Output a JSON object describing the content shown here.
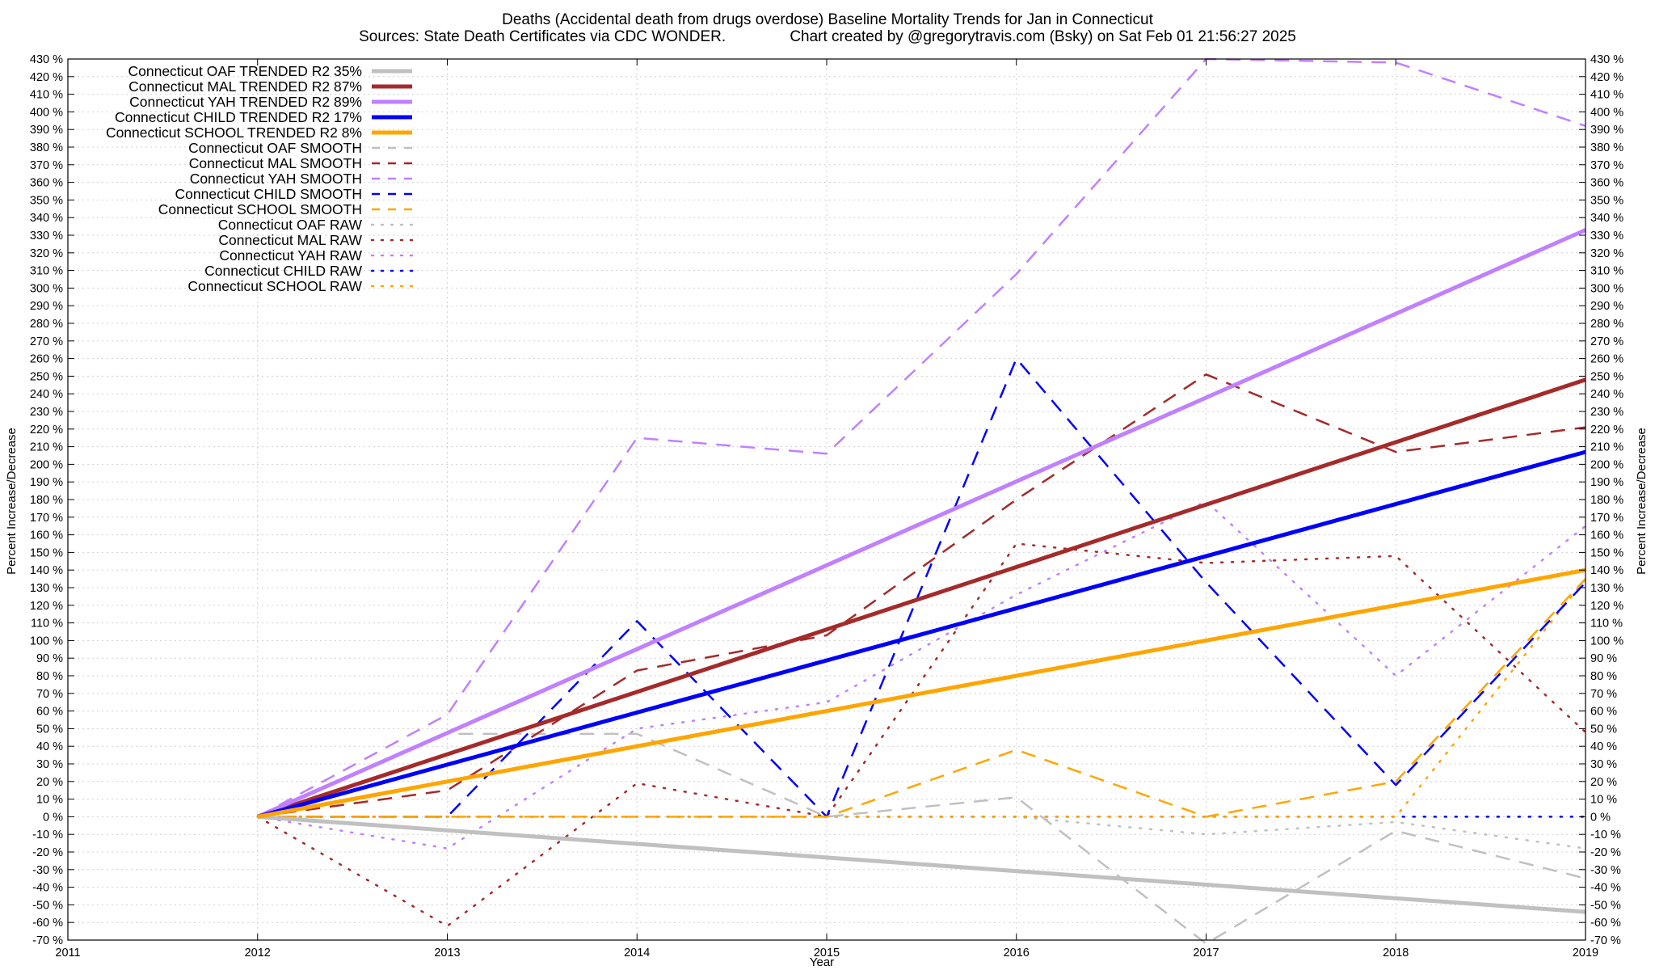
{
  "chart_data": {
    "type": "line",
    "title": "Deaths (Accidental death from drugs overdose)  Baseline Mortality Trends for Jan in Connecticut",
    "subtitle": "Sources: State Death Certificates via CDC WONDER.               Chart created by @gregorytravis.com (Bsky) on Sat Feb 01 21:56:27 2025",
    "xlabel": "Year",
    "ylabel": "Percent Increase/Decrease",
    "ylabel_right": "Percent Increase/Decrease",
    "xlim": [
      2011,
      2019
    ],
    "ylim": [
      -70,
      430
    ],
    "x_ticks": [
      2011,
      2012,
      2013,
      2014,
      2015,
      2016,
      2017,
      2018,
      2019
    ],
    "y_ticks": [
      -70,
      -60,
      -50,
      -40,
      -30,
      -20,
      -10,
      0,
      10,
      20,
      30,
      40,
      50,
      60,
      70,
      80,
      90,
      100,
      110,
      120,
      130,
      140,
      150,
      160,
      170,
      180,
      190,
      200,
      210,
      220,
      230,
      240,
      250,
      260,
      270,
      280,
      290,
      300,
      310,
      320,
      330,
      340,
      350,
      360,
      370,
      380,
      390,
      400,
      410,
      420,
      430
    ],
    "y_tick_suffix": " %",
    "grid": true,
    "legend_position": "top-left",
    "series": [
      {
        "name": "Connecticut OAF TRENDED R2  35%",
        "style": "solid",
        "color": "#c0c0c0",
        "x": [
          2012,
          2019
        ],
        "y": [
          0,
          -54
        ]
      },
      {
        "name": "Connecticut MAL TRENDED R2  87%",
        "style": "solid",
        "color": "#a52a2a",
        "x": [
          2012,
          2019
        ],
        "y": [
          0,
          248
        ]
      },
      {
        "name": "Connecticut YAH TRENDED R2  89%",
        "style": "solid",
        "color": "#c080ff",
        "x": [
          2012,
          2019
        ],
        "y": [
          0,
          333
        ]
      },
      {
        "name": "Connecticut CHILD TRENDED R2  17%",
        "style": "solid",
        "color": "#0000ff",
        "x": [
          2012,
          2019
        ],
        "y": [
          0,
          207
        ]
      },
      {
        "name": "Connecticut SCHOOL TRENDED R2   8%",
        "style": "solid",
        "color": "#ffa500",
        "x": [
          2012,
          2019
        ],
        "y": [
          0,
          140
        ]
      },
      {
        "name": "Connecticut OAF SMOOTH",
        "style": "dashed",
        "color": "#c0c0c0",
        "x": [
          2012,
          2013,
          2014,
          2015,
          2016,
          2017,
          2018,
          2019
        ],
        "y": [
          0,
          47,
          47,
          0,
          11,
          -72,
          -8,
          -35
        ]
      },
      {
        "name": "Connecticut MAL SMOOTH",
        "style": "dashed",
        "color": "#a52a2a",
        "x": [
          2012,
          2013,
          2014,
          2015,
          2016,
          2017,
          2018,
          2019
        ],
        "y": [
          0,
          15,
          83,
          103,
          180,
          251,
          207,
          221
        ]
      },
      {
        "name": "Connecticut YAH SMOOTH",
        "style": "dashed",
        "color": "#c080ff",
        "x": [
          2012,
          2013,
          2014,
          2015,
          2016,
          2017,
          2018,
          2019
        ],
        "y": [
          0,
          58,
          215,
          206,
          308,
          430,
          428,
          392
        ]
      },
      {
        "name": "Connecticut CHILD SMOOTH",
        "style": "dashed",
        "color": "#0000ff",
        "x": [
          2012,
          2013,
          2014,
          2015,
          2016,
          2017,
          2018,
          2019
        ],
        "y": [
          0,
          0,
          111,
          0,
          260,
          133,
          18,
          133
        ]
      },
      {
        "name": "Connecticut SCHOOL SMOOTH",
        "style": "dashed",
        "color": "#ffa500",
        "x": [
          2012,
          2013,
          2014,
          2015,
          2016,
          2017,
          2018,
          2019
        ],
        "y": [
          0,
          0,
          0,
          0,
          38,
          0,
          20,
          135
        ]
      },
      {
        "name": "Connecticut OAF RAW",
        "style": "dotted",
        "color": "#c0c0c0",
        "x": [
          2012,
          2013,
          2014,
          2015,
          2016,
          2017,
          2018,
          2019
        ],
        "y": [
          0,
          0,
          0,
          0,
          0,
          -10,
          -3,
          -18
        ]
      },
      {
        "name": "Connecticut MAL RAW",
        "style": "dotted",
        "color": "#a52a2a",
        "x": [
          2012,
          2013,
          2014,
          2015,
          2016,
          2017,
          2018,
          2019
        ],
        "y": [
          0,
          -62,
          19,
          0,
          155,
          144,
          148,
          48
        ]
      },
      {
        "name": "Connecticut YAH RAW",
        "style": "dotted",
        "color": "#c080ff",
        "x": [
          2012,
          2013,
          2014,
          2015,
          2016,
          2017,
          2018,
          2019
        ],
        "y": [
          0,
          -18,
          50,
          65,
          126,
          179,
          80,
          165
        ]
      },
      {
        "name": "Connecticut CHILD RAW",
        "style": "dotted",
        "color": "#0000ff",
        "x": [
          2012,
          2013,
          2014,
          2015,
          2016,
          2017,
          2018,
          2019
        ],
        "y": [
          0,
          0,
          0,
          0,
          0,
          0,
          0,
          0
        ]
      },
      {
        "name": "Connecticut SCHOOL RAW",
        "style": "dotted",
        "color": "#ffa500",
        "x": [
          2012,
          2013,
          2014,
          2015,
          2016,
          2017,
          2018,
          2019
        ],
        "y": [
          0,
          0,
          0,
          0,
          0,
          0,
          0,
          135
        ]
      }
    ]
  }
}
